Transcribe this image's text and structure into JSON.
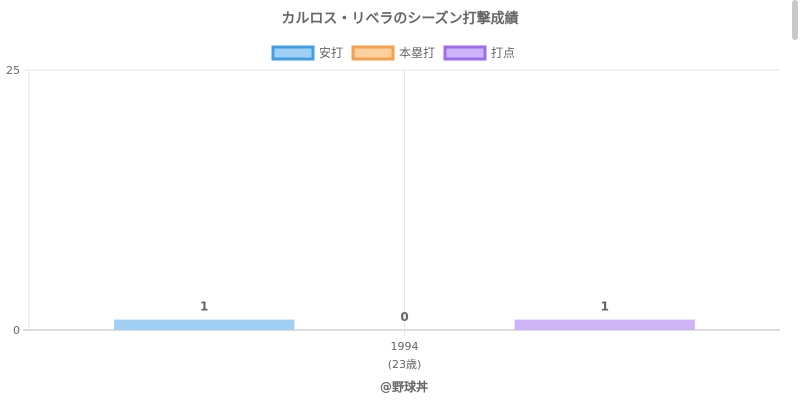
{
  "chart_data": {
    "type": "bar",
    "title": "カルロス・リベラのシーズン打撃成績",
    "categories": [
      "1994"
    ],
    "category_sublabels": [
      "(23歳)"
    ],
    "series": [
      {
        "name": "安打",
        "values": [
          1
        ],
        "color": "#a0cff3",
        "border": "#3fa0e6"
      },
      {
        "name": "本塁打",
        "values": [
          0
        ],
        "color": "#fdd0a2",
        "border": "#f5a04a"
      },
      {
        "name": "打点",
        "values": [
          1
        ],
        "color": "#cfb5f7",
        "border": "#9c6cf0"
      }
    ],
    "ylim": [
      0,
      25
    ],
    "yticks": [
      0,
      25
    ],
    "grid": true,
    "legend_position": "top"
  },
  "credit": "@野球丼"
}
